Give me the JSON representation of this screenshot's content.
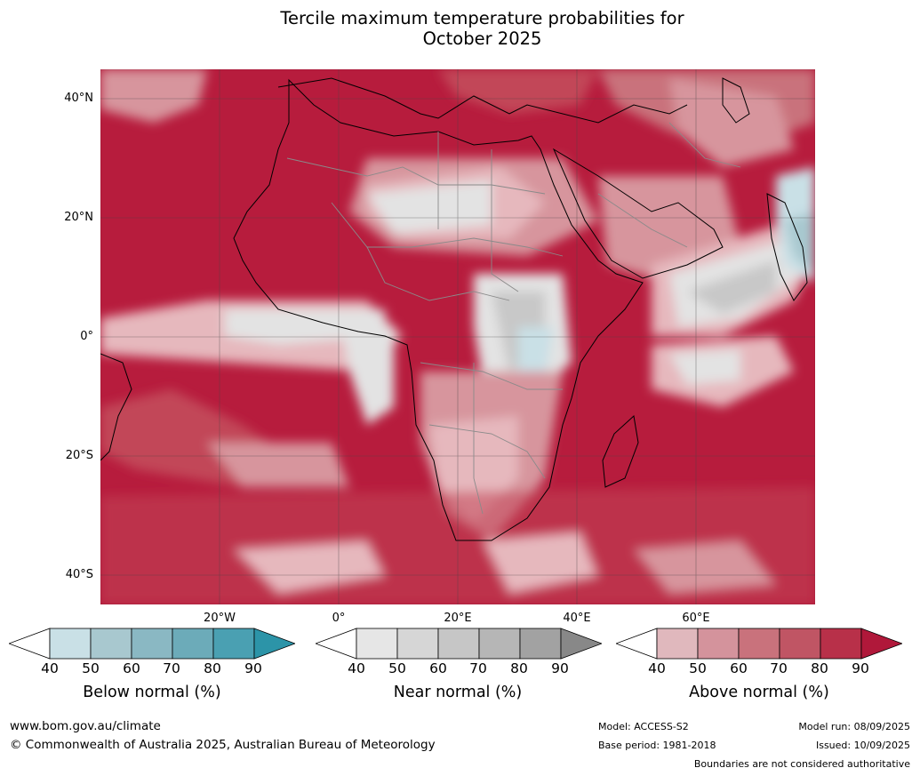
{
  "title_line1": "Tercile maximum temperature probabilities for",
  "title_line2": "October 2025",
  "lat_labels": [
    "40°N",
    "20°N",
    "0°",
    "20°S",
    "40°S"
  ],
  "lon_labels": [
    "20°W",
    "0°",
    "20°E",
    "40°E",
    "60°E"
  ],
  "colorbars": [
    {
      "label": "Below normal (%)",
      "ticks": [
        "40",
        "50",
        "60",
        "70",
        "80",
        "90"
      ],
      "colors": [
        "#ffffff",
        "#c9e0e6",
        "#a8c8cf",
        "#8ab8c3",
        "#6cabb9",
        "#4aa0b2",
        "#2c94a8"
      ]
    },
    {
      "label": "Near normal (%)",
      "ticks": [
        "40",
        "50",
        "60",
        "70",
        "80",
        "90"
      ],
      "colors": [
        "#ffffff",
        "#e6e6e6",
        "#d6d6d6",
        "#c6c6c6",
        "#b6b6b6",
        "#a2a2a2",
        "#888888"
      ]
    },
    {
      "label": "Above normal (%)",
      "ticks": [
        "40",
        "50",
        "60",
        "70",
        "80",
        "90"
      ],
      "colors": [
        "#ffffff",
        "#e0b8bd",
        "#d4939c",
        "#c9727c",
        "#c05564",
        "#b83049",
        "#b0183a"
      ]
    }
  ],
  "footer": {
    "website": "www.bom.gov.au/climate",
    "copyright": "© Commonwealth of Australia 2025, Australian Bureau of Meteorology",
    "model": "Model: ACCESS-S2",
    "base_period": "Base period: 1981-2018",
    "model_run": "Model run: 08/09/2025",
    "issued": "Issued: 10/09/2025",
    "disclaimer": "Boundaries are not considered authoritative"
  },
  "map_colors": {
    "ocean_above": "#b71c3d",
    "above_mid": "#c24658",
    "above_light": "#d7959d",
    "above_pale": "#e6b8bd",
    "near_pale": "#e3e3e3",
    "near_mid": "#c8c8c8",
    "below_light": "#a8c8cf",
    "coast": "#000000",
    "borders": "#8a8a8a",
    "grid": "#444444"
  }
}
